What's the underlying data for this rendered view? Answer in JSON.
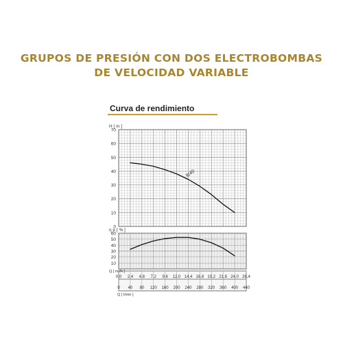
{
  "page": {
    "heading_line1": "GRUPOS DE PRESIÓN CON DOS ELECTROBOMBAS",
    "heading_line2": "DE VELOCIDAD VARIABLE",
    "heading_color": "#a7862f",
    "accent_rule_color": "#c59d3a"
  },
  "chart_data": [
    {
      "type": "line",
      "title": "Curva de rendimiento",
      "ylabel": "H [ m ]",
      "ylim": [
        0,
        70
      ],
      "yticks": [
        "0",
        "10",
        "20",
        "30",
        "40",
        "50",
        "60",
        "70"
      ],
      "xlim": [
        0,
        440
      ],
      "grid": true,
      "series": [
        {
          "name": "8/40",
          "x": [
            40,
            80,
            120,
            160,
            200,
            240,
            280,
            320,
            360,
            400
          ],
          "y": [
            46,
            45,
            43.5,
            41,
            38,
            34,
            29,
            23,
            16,
            10
          ]
        }
      ]
    },
    {
      "type": "line",
      "ylabel": "η p [ % ]",
      "ylim": [
        0,
        60
      ],
      "yticks": [
        "10",
        "20",
        "30",
        "40",
        "50",
        "60"
      ],
      "xlim": [
        0,
        440
      ],
      "grid": true,
      "series": [
        {
          "x": [
            40,
            80,
            120,
            160,
            200,
            240,
            280,
            320,
            360,
            400
          ],
          "y": [
            33,
            41,
            47,
            51,
            53,
            53,
            50,
            44,
            35,
            22
          ]
        }
      ]
    }
  ],
  "x_axes": {
    "m3h": {
      "label": "Q [ m³/h ]",
      "ticks": [
        "0,0",
        "2,4",
        "4,8",
        "7,2",
        "9,6",
        "12,0",
        "14,4",
        "16,8",
        "19,2",
        "21,6",
        "24,0",
        "26,4"
      ]
    },
    "lmin": {
      "label": "Q [ l/min ]",
      "ticks": [
        "0",
        "40",
        "80",
        "120",
        "160",
        "200",
        "240",
        "280",
        "320",
        "360",
        "400",
        "440"
      ]
    }
  }
}
